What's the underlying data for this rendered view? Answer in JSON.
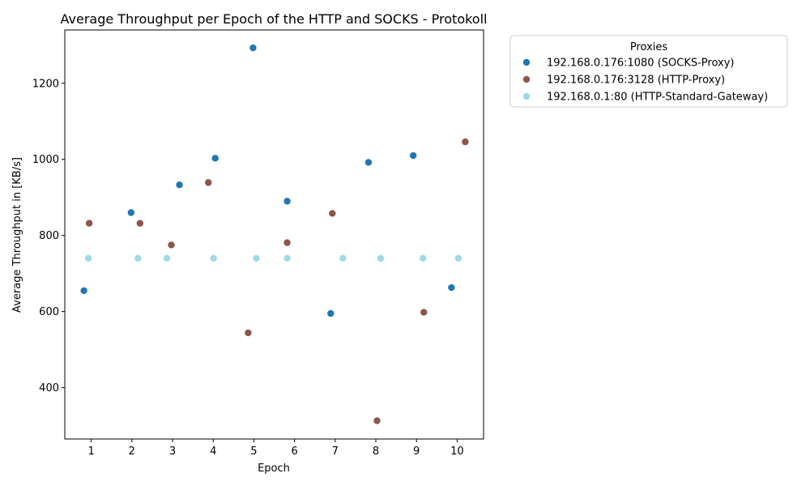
{
  "chart_data": {
    "type": "scatter",
    "title": "Average Throughput per Epoch of the HTTP and SOCKS - Protokoll",
    "xlabel": "Epoch",
    "ylabel": "Average Throughput in [KB/s]",
    "xlim": [
      0.35,
      10.65
    ],
    "ylim": [
      265,
      1340
    ],
    "xticks": [
      1,
      2,
      3,
      4,
      5,
      6,
      7,
      8,
      9,
      10
    ],
    "yticks": [
      400,
      600,
      800,
      1000,
      1200
    ],
    "grid": false,
    "legend": {
      "title": "Proxies",
      "placement": "outside-right-top"
    },
    "series": [
      {
        "name": "192.168.0.176:1080 (SOCKS-Proxy)",
        "color": "#1f77b4",
        "points": [
          {
            "x": 0.82,
            "y": 655
          },
          {
            "x": 1.98,
            "y": 860
          },
          {
            "x": 3.17,
            "y": 933
          },
          {
            "x": 4.05,
            "y": 1003
          },
          {
            "x": 4.98,
            "y": 1293
          },
          {
            "x": 5.82,
            "y": 890
          },
          {
            "x": 6.89,
            "y": 595
          },
          {
            "x": 7.82,
            "y": 992
          },
          {
            "x": 8.92,
            "y": 1010
          },
          {
            "x": 9.86,
            "y": 663
          }
        ]
      },
      {
        "name": "192.168.0.176:3128 (HTTP-Proxy)",
        "color": "#8c564b",
        "points": [
          {
            "x": 0.95,
            "y": 832
          },
          {
            "x": 2.2,
            "y": 832
          },
          {
            "x": 2.97,
            "y": 775
          },
          {
            "x": 3.88,
            "y": 939
          },
          {
            "x": 4.86,
            "y": 544
          },
          {
            "x": 5.82,
            "y": 781
          },
          {
            "x": 6.93,
            "y": 858
          },
          {
            "x": 8.03,
            "y": 313
          },
          {
            "x": 9.18,
            "y": 598
          },
          {
            "x": 10.2,
            "y": 1046
          }
        ]
      },
      {
        "name": "192.168.0.1:80 (HTTP-Standard-Gateway)",
        "color": "#9edae5",
        "points": [
          {
            "x": 0.93,
            "y": 740
          },
          {
            "x": 2.15,
            "y": 740
          },
          {
            "x": 2.86,
            "y": 740
          },
          {
            "x": 4.01,
            "y": 740
          },
          {
            "x": 5.06,
            "y": 740
          },
          {
            "x": 5.82,
            "y": 740
          },
          {
            "x": 7.19,
            "y": 740
          },
          {
            "x": 8.12,
            "y": 740
          },
          {
            "x": 9.16,
            "y": 740
          },
          {
            "x": 10.03,
            "y": 740
          }
        ]
      }
    ]
  }
}
